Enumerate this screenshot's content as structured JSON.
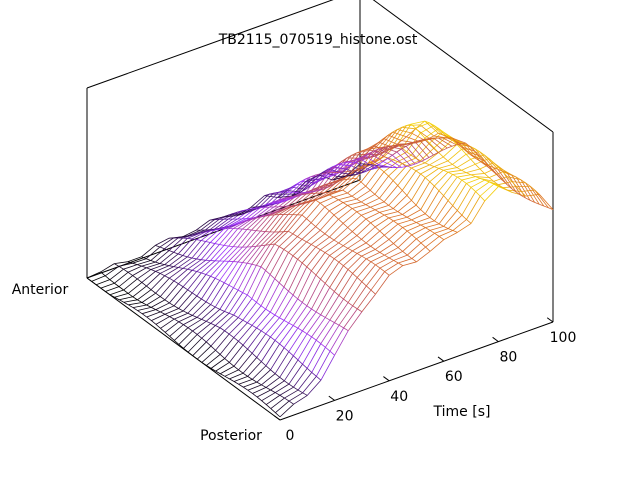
{
  "chart_data": {
    "type": "surface",
    "title": "TB2115_070519_histone.ost",
    "xlabel": "Time [s]",
    "xlim": [
      0,
      100
    ],
    "xticks": [
      0,
      20,
      40,
      60,
      80,
      100
    ],
    "ylabel_start": "Posterior",
    "ylabel_end": "Anterior",
    "grid": false,
    "colormap": [
      "#000000",
      "#9b30ff",
      "#c05050",
      "#e07820",
      "#ffff00"
    ],
    "time_samples": [
      0,
      5,
      10,
      15,
      20,
      25,
      30,
      35,
      40,
      45,
      50,
      55,
      60,
      65,
      70,
      75,
      80,
      85,
      90,
      95,
      100
    ],
    "height_profile_relative": [
      0.02,
      0.05,
      0.1,
      0.18,
      0.28,
      0.4,
      0.52,
      0.6,
      0.66,
      0.7,
      0.72,
      0.74,
      0.76,
      0.8,
      0.86,
      0.92,
      0.96,
      0.95,
      0.9,
      0.82,
      0.7
    ]
  }
}
